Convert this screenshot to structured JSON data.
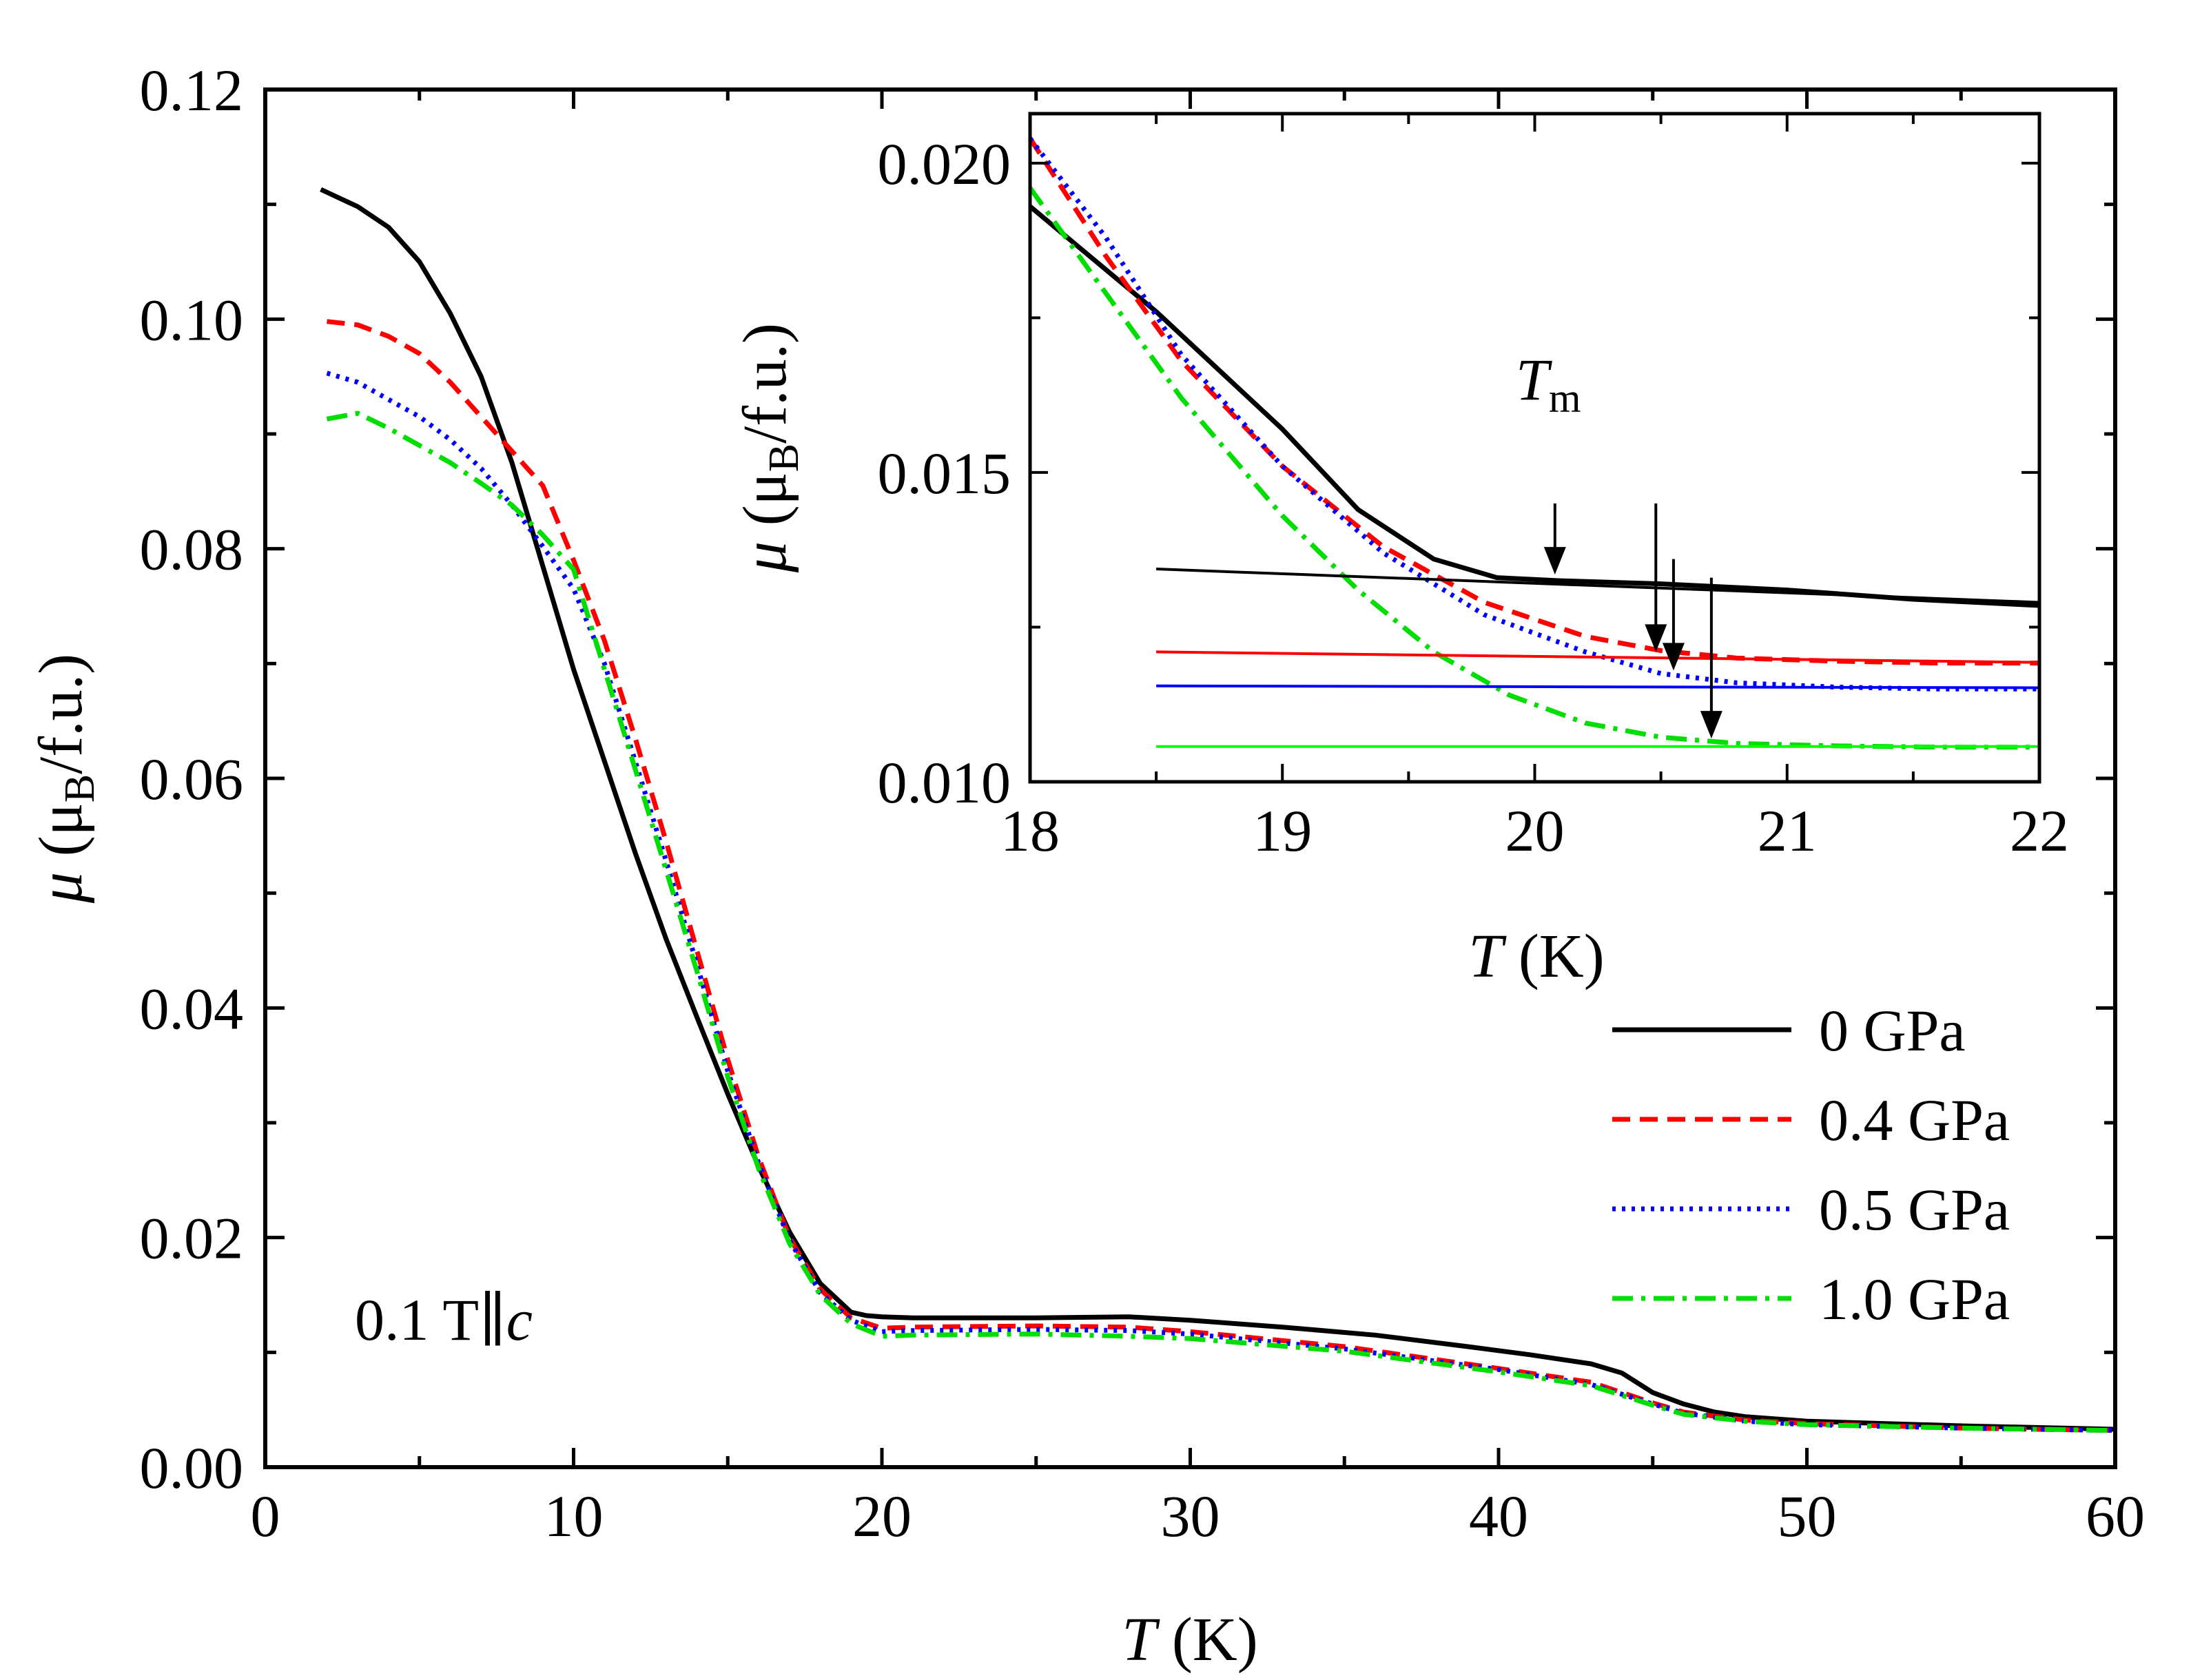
{
  "chart_data": [
    {
      "type": "line",
      "id": "main",
      "title": "",
      "xlabel_italic": "T",
      "xlabel_unit": "(K)",
      "ylabel_italic": "μ",
      "ylabel_unit_pre": "(μ",
      "ylabel_unit_sub": "B",
      "ylabel_unit_post": "/f.u.)",
      "xlim": [
        0,
        60
      ],
      "ylim": [
        0,
        0.12
      ],
      "x_ticks": [
        "0",
        "10",
        "20",
        "30",
        "40",
        "50",
        "60"
      ],
      "y_ticks": [
        "0.00",
        "0.02",
        "0.04",
        "0.06",
        "0.08",
        "0.10",
        "0.12"
      ],
      "annotation": {
        "text": "0.1 T∥",
        "italic": "c"
      },
      "legend_position": "bottom-right",
      "series": [
        {
          "name": "0 GPa",
          "color": "#000000",
          "dash": "solid",
          "x": [
            1.8,
            3,
            4,
            5,
            6,
            7,
            8,
            9,
            10,
            11,
            12,
            13,
            14,
            15,
            16,
            17,
            18,
            19,
            19.5,
            20,
            21,
            25,
            28,
            30,
            33,
            36,
            39,
            41,
            43,
            44,
            45,
            46,
            47,
            48,
            50,
            55,
            60
          ],
          "y": [
            0.1113,
            0.1098,
            0.108,
            0.105,
            0.1005,
            0.095,
            0.0875,
            0.0785,
            0.0695,
            0.0615,
            0.0535,
            0.046,
            0.0392,
            0.0325,
            0.0262,
            0.0205,
            0.016,
            0.0135,
            0.0132,
            0.0131,
            0.013,
            0.013,
            0.0131,
            0.0128,
            0.0122,
            0.0115,
            0.0105,
            0.0098,
            0.009,
            0.0082,
            0.0065,
            0.0055,
            0.0048,
            0.0044,
            0.004,
            0.0036,
            0.0033
          ]
        },
        {
          "name": "0.4 GPa",
          "color": "#ff0000",
          "dash": "dashed",
          "x": [
            2,
            3,
            4,
            5,
            6,
            7,
            8,
            9,
            10,
            11,
            12,
            13,
            14,
            15,
            16,
            17,
            18,
            19,
            20,
            21,
            25,
            28,
            30,
            35,
            40,
            43,
            45,
            46,
            48,
            50,
            55,
            60
          ],
          "y": [
            0.0998,
            0.0995,
            0.0985,
            0.097,
            0.0945,
            0.0915,
            0.0885,
            0.0855,
            0.079,
            0.072,
            0.0635,
            0.0545,
            0.045,
            0.0355,
            0.027,
            0.02,
            0.0155,
            0.013,
            0.0121,
            0.0122,
            0.0123,
            0.0122,
            0.0118,
            0.0105,
            0.0086,
            0.0074,
            0.0056,
            0.0048,
            0.0041,
            0.0038,
            0.0034,
            0.0032
          ]
        },
        {
          "name": "0.5 GPa",
          "color": "#0000ff",
          "dash": "dotted",
          "x": [
            2,
            3,
            4,
            5,
            6,
            7,
            8,
            9,
            10,
            11,
            12,
            13,
            14,
            15,
            16,
            17,
            18,
            19,
            20,
            21,
            25,
            28,
            30,
            35,
            40,
            43,
            45,
            46,
            48,
            50,
            55,
            60
          ],
          "y": [
            0.0953,
            0.0945,
            0.093,
            0.0915,
            0.0895,
            0.087,
            0.0838,
            0.0802,
            0.0765,
            0.07,
            0.0615,
            0.0528,
            0.0438,
            0.0345,
            0.0265,
            0.0198,
            0.0152,
            0.0128,
            0.0118,
            0.0119,
            0.012,
            0.0119,
            0.0116,
            0.0103,
            0.0085,
            0.0072,
            0.0055,
            0.0047,
            0.004,
            0.0037,
            0.0034,
            0.0032
          ]
        },
        {
          "name": "1.0 GPa",
          "color": "#00dd00",
          "dash": "dashdot",
          "x": [
            2,
            3,
            4,
            5,
            6,
            7,
            8,
            9,
            10,
            11,
            12,
            13,
            14,
            15,
            16,
            17,
            18,
            19,
            20,
            21,
            25,
            28,
            30,
            35,
            40,
            43,
            45,
            46,
            48,
            50,
            55,
            60
          ],
          "y": [
            0.0913,
            0.0918,
            0.0905,
            0.089,
            0.0875,
            0.0857,
            0.0838,
            0.0812,
            0.0782,
            0.0695,
            0.0608,
            0.052,
            0.0432,
            0.034,
            0.026,
            0.0195,
            0.015,
            0.0125,
            0.0114,
            0.0115,
            0.0116,
            0.0114,
            0.0112,
            0.0101,
            0.0083,
            0.0071,
            0.0054,
            0.0046,
            0.004,
            0.0037,
            0.0034,
            0.0032
          ]
        }
      ]
    },
    {
      "type": "line",
      "id": "inset",
      "title": "",
      "xlabel_italic": "T",
      "xlabel_unit": "(K)",
      "ylabel_italic": "μ",
      "ylabel_unit_pre": "(μ",
      "ylabel_unit_sub": "B",
      "ylabel_unit_post": "/f.u.)",
      "xlim": [
        18,
        22
      ],
      "ylim": [
        0.01,
        0.0208
      ],
      "x_ticks": [
        "18",
        "19",
        "20",
        "21",
        "22"
      ],
      "y_ticks": [
        "0.010",
        "0.015",
        "0.020"
      ],
      "x_tick_values": [
        18,
        19,
        20,
        21,
        22
      ],
      "y_tick_values": [
        0.01,
        0.015,
        0.02
      ],
      "annotation": {
        "text": "T",
        "subscript": "m"
      },
      "series": [
        {
          "name": "0 GPa",
          "color": "#000000",
          "dash": "solid",
          "x": [
            18,
            18.5,
            19,
            19.3,
            19.6,
            19.85,
            20.1,
            20.5,
            21,
            21.5,
            22
          ],
          "y": [
            0.0193,
            0.0176,
            0.0157,
            0.0144,
            0.0136,
            0.0133,
            0.01325,
            0.0132,
            0.0131,
            0.01295,
            0.01285
          ]
        },
        {
          "name": "0.4 GPa",
          "color": "#ff0000",
          "dash": "dashed",
          "x": [
            18,
            18.3,
            18.6,
            19,
            19.4,
            19.8,
            20.2,
            20.5,
            20.8,
            21.2,
            21.6,
            22
          ],
          "y": [
            0.0204,
            0.0185,
            0.0168,
            0.0151,
            0.0138,
            0.0129,
            0.01235,
            0.01212,
            0.012,
            0.01195,
            0.01192,
            0.01192
          ]
        },
        {
          "name": "0.5 GPa",
          "color": "#0000ff",
          "dash": "dotted",
          "x": [
            18,
            18.3,
            18.6,
            19,
            19.4,
            19.8,
            20.2,
            20.5,
            20.8,
            21.2,
            21.6,
            22
          ],
          "y": [
            0.0204,
            0.0188,
            0.0169,
            0.0151,
            0.0137,
            0.0127,
            0.0121,
            0.01175,
            0.0116,
            0.01153,
            0.0115,
            0.0115
          ]
        },
        {
          "name": "1.0 GPa",
          "color": "#00dd00",
          "dash": "dashdot",
          "x": [
            18,
            18.3,
            18.6,
            19,
            19.3,
            19.6,
            19.9,
            20.2,
            20.5,
            20.8,
            21.2,
            21.6,
            22
          ],
          "y": [
            0.0196,
            0.0179,
            0.0162,
            0.0143,
            0.0131,
            0.0121,
            0.0114,
            0.01095,
            0.01072,
            0.01062,
            0.01058,
            0.01056,
            0.01056
          ]
        }
      ],
      "baselines": [
        {
          "color": "#000000",
          "x": [
            18.5,
            22
          ],
          "y": [
            0.01344,
            0.0129
          ]
        },
        {
          "color": "#ff0000",
          "x": [
            18.5,
            22
          ],
          "y": [
            0.0121,
            0.01193
          ]
        },
        {
          "color": "#0000ff",
          "x": [
            18.5,
            22
          ],
          "y": [
            0.01155,
            0.01152
          ]
        },
        {
          "color": "#00ff00",
          "x": [
            18.5,
            22
          ],
          "y": [
            0.01057,
            0.01057
          ]
        }
      ],
      "arrows": [
        {
          "x": 20.08,
          "y_from": 0.0145,
          "y_to": 0.01335,
          "label": "Tm"
        },
        {
          "x": 20.48,
          "y_from": 0.0145,
          "y_to": 0.0121
        },
        {
          "x": 20.55,
          "y_from": 0.0136,
          "y_to": 0.0118
        },
        {
          "x": 20.7,
          "y_from": 0.0133,
          "y_to": 0.0107
        }
      ]
    }
  ]
}
